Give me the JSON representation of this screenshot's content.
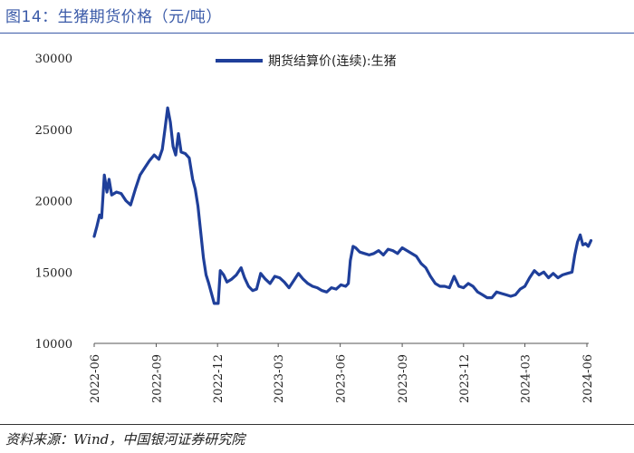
{
  "header": {
    "title": "图14：生猪期货价格（元/吨）"
  },
  "footer": {
    "source": "资料来源：Wind，中国银河证券研究院"
  },
  "colors": {
    "series": "#1f3f9a",
    "title": "#3a5aa8"
  },
  "chart_data": {
    "type": "line",
    "title": "图14：生猪期货价格（元/吨）",
    "xlabel": "",
    "ylabel": "",
    "ylim": [
      10000,
      30000
    ],
    "yticks": [
      10000,
      15000,
      20000,
      25000,
      30000
    ],
    "xticks": [
      "2022-06",
      "2022-09",
      "2022-12",
      "2023-03",
      "2023-06",
      "2023-09",
      "2023-12",
      "2024-03",
      "2024-06"
    ],
    "grid": false,
    "legend_position": "top-center",
    "series": [
      {
        "name": "期货结算价(连续):生猪",
        "points": [
          [
            "2022-06-01",
            17500
          ],
          [
            "2022-06-05",
            18200
          ],
          [
            "2022-06-09",
            19000
          ],
          [
            "2022-06-12",
            18800
          ],
          [
            "2022-06-16",
            21800
          ],
          [
            "2022-06-20",
            20600
          ],
          [
            "2022-06-23",
            21500
          ],
          [
            "2022-06-27",
            20400
          ],
          [
            "2022-07-04",
            20600
          ],
          [
            "2022-07-11",
            20500
          ],
          [
            "2022-07-18",
            20000
          ],
          [
            "2022-07-25",
            19700
          ],
          [
            "2022-08-01",
            20800
          ],
          [
            "2022-08-08",
            21800
          ],
          [
            "2022-08-15",
            22300
          ],
          [
            "2022-08-22",
            22800
          ],
          [
            "2022-08-29",
            23200
          ],
          [
            "2022-09-05",
            22900
          ],
          [
            "2022-09-10",
            23600
          ],
          [
            "2022-09-14",
            25000
          ],
          [
            "2022-09-18",
            26500
          ],
          [
            "2022-09-22",
            25500
          ],
          [
            "2022-09-26",
            23800
          ],
          [
            "2022-09-30",
            23200
          ],
          [
            "2022-10-04",
            24700
          ],
          [
            "2022-10-08",
            23400
          ],
          [
            "2022-10-14",
            23300
          ],
          [
            "2022-10-20",
            23000
          ],
          [
            "2022-10-25",
            21500
          ],
          [
            "2022-10-29",
            20800
          ],
          [
            "2022-11-02",
            19600
          ],
          [
            "2022-11-06",
            17800
          ],
          [
            "2022-11-10",
            16000
          ],
          [
            "2022-11-14",
            14800
          ],
          [
            "2022-11-18",
            14200
          ],
          [
            "2022-11-22",
            13500
          ],
          [
            "2022-11-26",
            12800
          ],
          [
            "2022-12-02",
            12800
          ],
          [
            "2022-12-05",
            15100
          ],
          [
            "2022-12-10",
            14800
          ],
          [
            "2022-12-15",
            14300
          ],
          [
            "2022-12-22",
            14500
          ],
          [
            "2022-12-29",
            14800
          ],
          [
            "2023-01-05",
            15300
          ],
          [
            "2023-01-10",
            14600
          ],
          [
            "2023-01-16",
            14000
          ],
          [
            "2023-01-22",
            13700
          ],
          [
            "2023-01-28",
            13800
          ],
          [
            "2023-02-03",
            14900
          ],
          [
            "2023-02-10",
            14500
          ],
          [
            "2023-02-17",
            14200
          ],
          [
            "2023-02-24",
            14700
          ],
          [
            "2023-03-03",
            14600
          ],
          [
            "2023-03-10",
            14300
          ],
          [
            "2023-03-17",
            13900
          ],
          [
            "2023-03-24",
            14400
          ],
          [
            "2023-03-31",
            14900
          ],
          [
            "2023-04-07",
            14500
          ],
          [
            "2023-04-14",
            14200
          ],
          [
            "2023-04-21",
            14000
          ],
          [
            "2023-04-28",
            13900
          ],
          [
            "2023-05-05",
            13700
          ],
          [
            "2023-05-12",
            13600
          ],
          [
            "2023-05-19",
            13900
          ],
          [
            "2023-05-26",
            13800
          ],
          [
            "2023-06-02",
            14100
          ],
          [
            "2023-06-09",
            14000
          ],
          [
            "2023-06-13",
            14200
          ],
          [
            "2023-06-16",
            15800
          ],
          [
            "2023-06-20",
            16800
          ],
          [
            "2023-06-24",
            16700
          ],
          [
            "2023-06-30",
            16400
          ],
          [
            "2023-07-07",
            16300
          ],
          [
            "2023-07-14",
            16200
          ],
          [
            "2023-07-21",
            16300
          ],
          [
            "2023-07-28",
            16500
          ],
          [
            "2023-08-04",
            16200
          ],
          [
            "2023-08-11",
            16600
          ],
          [
            "2023-08-18",
            16500
          ],
          [
            "2023-08-25",
            16300
          ],
          [
            "2023-09-01",
            16700
          ],
          [
            "2023-09-08",
            16500
          ],
          [
            "2023-09-15",
            16300
          ],
          [
            "2023-09-22",
            16100
          ],
          [
            "2023-09-29",
            15600
          ],
          [
            "2023-10-06",
            15300
          ],
          [
            "2023-10-13",
            14700
          ],
          [
            "2023-10-20",
            14200
          ],
          [
            "2023-10-27",
            14000
          ],
          [
            "2023-11-03",
            14000
          ],
          [
            "2023-11-10",
            13900
          ],
          [
            "2023-11-17",
            14700
          ],
          [
            "2023-11-24",
            14000
          ],
          [
            "2023-12-01",
            13900
          ],
          [
            "2023-12-08",
            14200
          ],
          [
            "2023-12-15",
            14000
          ],
          [
            "2023-12-22",
            13600
          ],
          [
            "2023-12-29",
            13400
          ],
          [
            "2024-01-05",
            13200
          ],
          [
            "2024-01-12",
            13200
          ],
          [
            "2024-01-19",
            13600
          ],
          [
            "2024-01-26",
            13500
          ],
          [
            "2024-02-02",
            13400
          ],
          [
            "2024-02-09",
            13300
          ],
          [
            "2024-02-16",
            13400
          ],
          [
            "2024-02-23",
            13800
          ],
          [
            "2024-03-01",
            14000
          ],
          [
            "2024-03-08",
            14600
          ],
          [
            "2024-03-15",
            15100
          ],
          [
            "2024-03-22",
            14800
          ],
          [
            "2024-03-29",
            15000
          ],
          [
            "2024-04-05",
            14600
          ],
          [
            "2024-04-12",
            14900
          ],
          [
            "2024-04-19",
            14600
          ],
          [
            "2024-04-26",
            14800
          ],
          [
            "2024-05-03",
            14900
          ],
          [
            "2024-05-10",
            15000
          ],
          [
            "2024-05-14",
            16200
          ],
          [
            "2024-05-18",
            17100
          ],
          [
            "2024-05-22",
            17600
          ],
          [
            "2024-05-26",
            16900
          ],
          [
            "2024-05-30",
            17000
          ],
          [
            "2024-06-03",
            16800
          ],
          [
            "2024-06-07",
            17200
          ]
        ]
      }
    ]
  }
}
